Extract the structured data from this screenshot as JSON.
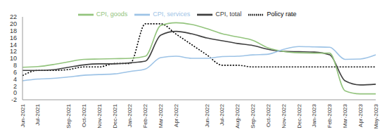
{
  "chart_data": {
    "type": "line",
    "categories": [
      "Jun-2021",
      "Jul-2021",
      null,
      "Sep-2021",
      "Oct-2021",
      "Nov-2021",
      "Dec-2021",
      "Jan-2022",
      "Feb-2022",
      "Mar-2022",
      "Apr-2022",
      null,
      "Jun-2022",
      "Jul-2022",
      "Aug-2022",
      "Sep-2022",
      "Oct-2022",
      "Nov-2022",
      "Dec-2022",
      "Jan-2023",
      "Feb-2023",
      "Mar-2023",
      "Apr-2023",
      "May-2023"
    ],
    "series": [
      {
        "name": "Policy rate",
        "color": "#000000",
        "line_style": "dotted",
        "values": [
          5.0,
          6.5,
          6.5,
          6.75,
          7.5,
          7.5,
          8.5,
          8.5,
          20,
          20,
          17,
          14,
          11,
          8,
          8,
          7.5,
          7.5,
          7.5,
          7.5,
          7.5,
          7.5,
          7.5,
          7.5,
          7.5
        ]
      },
      {
        "name": "CPI, total",
        "color": "#404040",
        "line_style": "solid",
        "values": [
          6.5,
          6.5,
          6.7,
          7.4,
          8.1,
          8.4,
          8.4,
          8.7,
          9.2,
          16.7,
          17.8,
          17.1,
          15.9,
          15.1,
          14.3,
          13.7,
          12.6,
          12.0,
          11.9,
          11.8,
          11.0,
          3.5,
          2.3,
          2.5
        ]
      },
      {
        "name": "CPI, goods",
        "color": "#93c47d",
        "line_style": "solid",
        "values": [
          7.4,
          7.6,
          8.2,
          9.0,
          9.7,
          9.8,
          9.9,
          10.0,
          10.6,
          19.5,
          20.3,
          19.8,
          18.6,
          17.1,
          16.2,
          15.2,
          13.0,
          12.0,
          11.6,
          11.5,
          11.5,
          0.6,
          -0.3,
          -0.3
        ]
      },
      {
        "name": "CPI, services",
        "color": "#9dc3e6",
        "line_style": "solid",
        "values": [
          3.5,
          4.0,
          4.2,
          4.6,
          5.1,
          5.3,
          5.5,
          6.2,
          6.9,
          10.2,
          10.6,
          10.0,
          10.0,
          10.5,
          10.6,
          11.0,
          11.2,
          12.6,
          13.4,
          13.3,
          13.2,
          9.7,
          9.8,
          11.0
        ]
      }
    ],
    "ylim": [
      -2,
      22
    ],
    "yticks": [
      -2,
      0,
      2,
      4,
      6,
      8,
      10,
      12,
      14,
      16,
      18,
      20,
      22
    ],
    "grid": false,
    "legend": "top"
  }
}
